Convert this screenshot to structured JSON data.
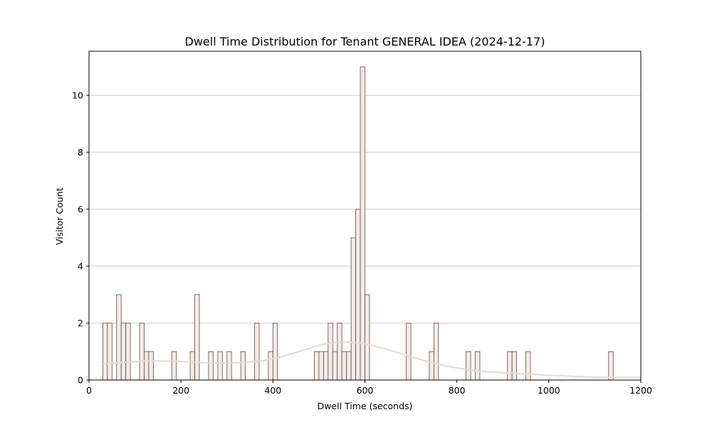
{
  "chart_data": {
    "type": "bar",
    "subtype": "histogram",
    "title": "Dwell Time Distribution for Tenant GENERAL IDEA (2024-12-17)",
    "xlabel": "Dwell Time (seconds)",
    "ylabel": "Visitor Count",
    "xlim": [
      0,
      1200
    ],
    "ylim": [
      0,
      11.55
    ],
    "xticks": [
      0,
      200,
      400,
      600,
      800,
      1000,
      1200
    ],
    "yticks": [
      0,
      2,
      4,
      6,
      8,
      10
    ],
    "grid": "y",
    "legend": "none",
    "bin_width": 10,
    "bins": [
      {
        "x0": 30,
        "x1": 40,
        "count": 2
      },
      {
        "x0": 40,
        "x1": 50,
        "count": 2
      },
      {
        "x0": 60,
        "x1": 70,
        "count": 3
      },
      {
        "x0": 70,
        "x1": 80,
        "count": 2
      },
      {
        "x0": 80,
        "x1": 90,
        "count": 2
      },
      {
        "x0": 110,
        "x1": 120,
        "count": 2
      },
      {
        "x0": 120,
        "x1": 130,
        "count": 1
      },
      {
        "x0": 130,
        "x1": 140,
        "count": 1
      },
      {
        "x0": 180,
        "x1": 190,
        "count": 1
      },
      {
        "x0": 220,
        "x1": 230,
        "count": 1
      },
      {
        "x0": 230,
        "x1": 240,
        "count": 3
      },
      {
        "x0": 260,
        "x1": 270,
        "count": 1
      },
      {
        "x0": 280,
        "x1": 290,
        "count": 1
      },
      {
        "x0": 300,
        "x1": 310,
        "count": 1
      },
      {
        "x0": 330,
        "x1": 340,
        "count": 1
      },
      {
        "x0": 360,
        "x1": 370,
        "count": 2
      },
      {
        "x0": 390,
        "x1": 400,
        "count": 1
      },
      {
        "x0": 400,
        "x1": 410,
        "count": 2
      },
      {
        "x0": 490,
        "x1": 500,
        "count": 1
      },
      {
        "x0": 500,
        "x1": 510,
        "count": 1
      },
      {
        "x0": 510,
        "x1": 520,
        "count": 1
      },
      {
        "x0": 520,
        "x1": 530,
        "count": 2
      },
      {
        "x0": 530,
        "x1": 540,
        "count": 1
      },
      {
        "x0": 540,
        "x1": 550,
        "count": 2
      },
      {
        "x0": 550,
        "x1": 560,
        "count": 1
      },
      {
        "x0": 560,
        "x1": 570,
        "count": 1
      },
      {
        "x0": 570,
        "x1": 580,
        "count": 5
      },
      {
        "x0": 580,
        "x1": 590,
        "count": 6
      },
      {
        "x0": 590,
        "x1": 600,
        "count": 11
      },
      {
        "x0": 600,
        "x1": 610,
        "count": 3
      },
      {
        "x0": 690,
        "x1": 700,
        "count": 2
      },
      {
        "x0": 740,
        "x1": 750,
        "count": 1
      },
      {
        "x0": 750,
        "x1": 760,
        "count": 2
      },
      {
        "x0": 820,
        "x1": 830,
        "count": 1
      },
      {
        "x0": 840,
        "x1": 850,
        "count": 1
      },
      {
        "x0": 910,
        "x1": 920,
        "count": 1
      },
      {
        "x0": 920,
        "x1": 930,
        "count": 1
      },
      {
        "x0": 950,
        "x1": 960,
        "count": 1
      },
      {
        "x0": 1130,
        "x1": 1140,
        "count": 1
      }
    ],
    "kde": {
      "x": [
        30,
        60,
        100,
        130,
        160,
        200,
        250,
        300,
        340,
        380,
        420,
        460,
        500,
        530,
        560,
        590,
        620,
        660,
        700,
        740,
        780,
        820,
        860,
        900,
        950,
        1000,
        1050,
        1100,
        1150,
        1200
      ],
      "y": [
        0.57,
        0.6,
        0.65,
        0.67,
        0.67,
        0.65,
        0.61,
        0.6,
        0.62,
        0.68,
        0.82,
        1.02,
        1.22,
        1.31,
        1.33,
        1.31,
        1.2,
        1.02,
        0.82,
        0.63,
        0.48,
        0.37,
        0.3,
        0.26,
        0.21,
        0.17,
        0.13,
        0.1,
        0.09,
        0.09
      ]
    },
    "colors": {
      "bar_fill": "#f4ebe7",
      "bar_edge": "#5a4c48",
      "kde_line": "#e8d9d1",
      "grid": "#c8c8c8",
      "axes": "#000000"
    }
  }
}
